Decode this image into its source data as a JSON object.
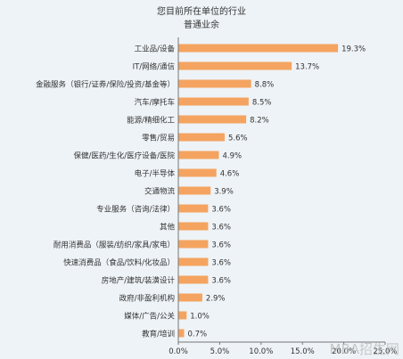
{
  "chart_data": {
    "type": "bar",
    "orientation": "horizontal",
    "title": "您目前所在单位的行业",
    "subtitle": "普通业余",
    "categories": [
      "工业品/设备",
      "IT/网络/通信",
      "金融服务（银行/证券/保险/投资/基金等）",
      "汽车/摩托车",
      "能源/精细化工",
      "零售/贸易",
      "保健/医药/生化/医疗设备/医院",
      "电子/半导体",
      "交通物流",
      "专业服务（咨询/法律）",
      "其他",
      "耐用消费品（服装/纺织/家具/家电）",
      "快速消费品（食品/饮料/化妆品）",
      "房地产/建筑/装潢设计",
      "政府/非盈利机构",
      "媒体/广告/公关",
      "教育/培训"
    ],
    "values": [
      19.3,
      13.7,
      8.8,
      8.5,
      8.2,
      5.6,
      4.9,
      4.6,
      3.9,
      3.6,
      3.6,
      3.6,
      3.6,
      3.6,
      2.9,
      1.0,
      0.7
    ],
    "value_labels": [
      "19.3%",
      "13.7%",
      "8.8%",
      "8.5%",
      "8.2%",
      "5.6%",
      "4.9%",
      "4.6%",
      "3.9%",
      "3.6%",
      "3.6%",
      "3.6%",
      "3.6%",
      "3.6%",
      "2.9%",
      "1.0%",
      "0.7%"
    ],
    "xlim": [
      0,
      25
    ],
    "xticks": [
      0,
      5,
      10,
      15,
      20,
      25
    ],
    "xtick_labels": [
      "0.0%",
      "5.0%",
      "10.0%",
      "15.0%",
      "20.0%",
      "25.0%"
    ],
    "grid": false,
    "legend": false,
    "bar_color": "#f4a460"
  },
  "watermark": "MBA招生网"
}
